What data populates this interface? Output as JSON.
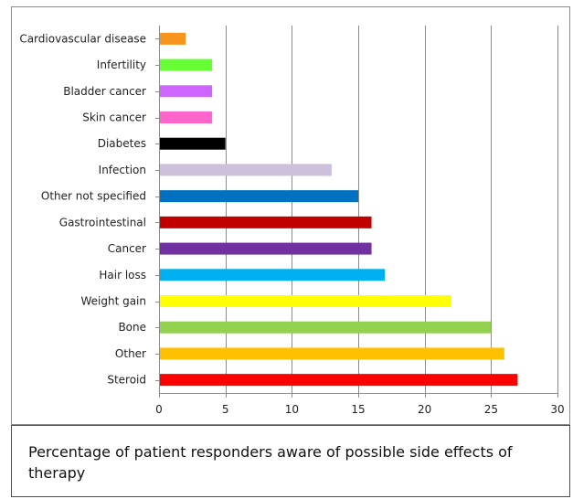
{
  "chart_data": {
    "type": "bar",
    "orientation": "horizontal",
    "categories": [
      "Cardiovascular disease",
      "Infertility",
      "Bladder cancer",
      "Skin cancer",
      "Diabetes",
      "Infection",
      "Other not specified",
      "Gastrointestinal",
      "Cancer",
      "Hair loss",
      "Weight gain",
      "Bone",
      "Other",
      "Steroid"
    ],
    "values": [
      2,
      4,
      4,
      4,
      5,
      13,
      15,
      16,
      16,
      17,
      22,
      25,
      26,
      27
    ],
    "colors": [
      "#f7941d",
      "#66ff33",
      "#cc66ff",
      "#ff66cc",
      "#000000",
      "#ccc0da",
      "#0070c0",
      "#c00000",
      "#7030a0",
      "#00b0f0",
      "#ffff00",
      "#92d050",
      "#ffc000",
      "#ff0000"
    ],
    "xlim": [
      0,
      30
    ],
    "xticks": [
      0,
      5,
      10,
      15,
      20,
      25,
      30
    ],
    "grid": true,
    "legend": "none",
    "title": "",
    "xlabel": "",
    "ylabel": ""
  },
  "caption": "Percentage of patient responders aware of possible side effects of therapy"
}
